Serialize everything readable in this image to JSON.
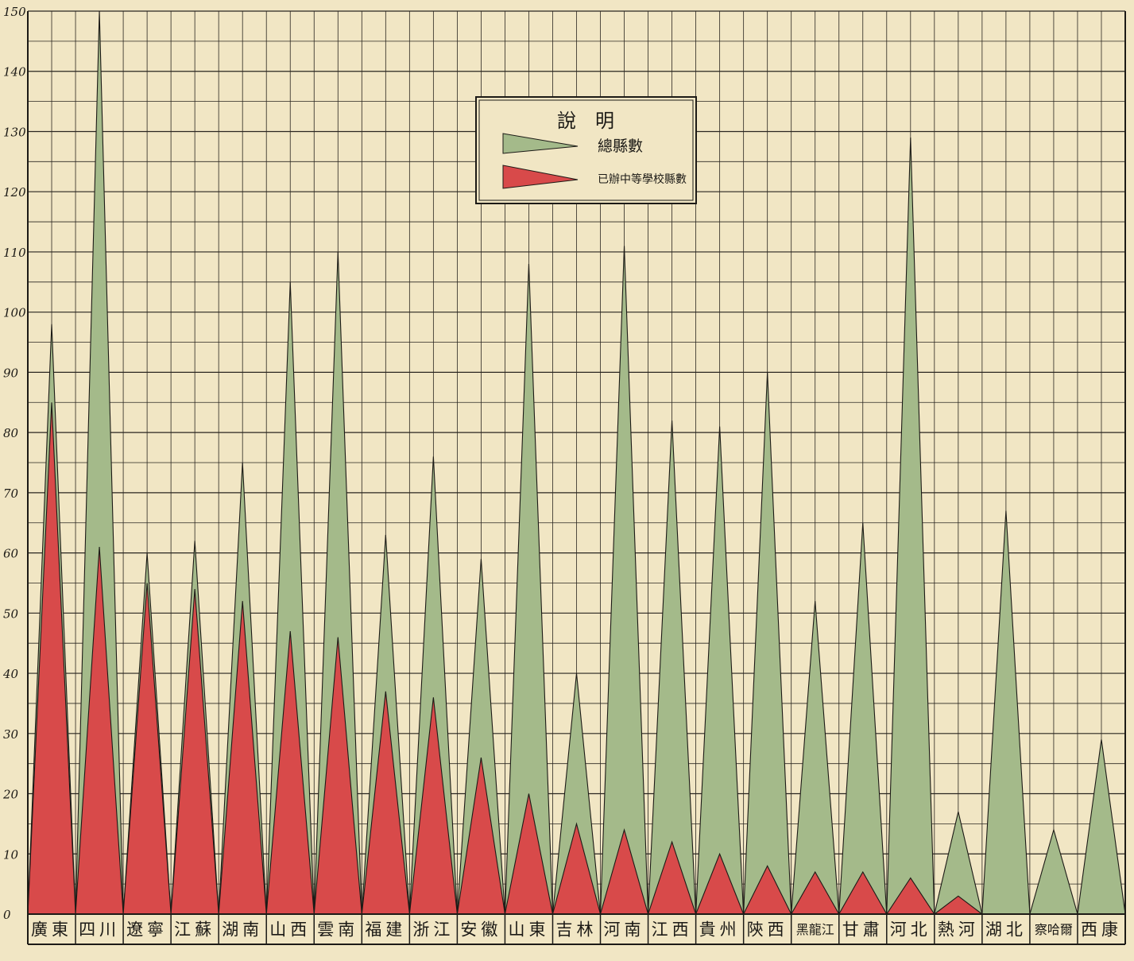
{
  "colors": {
    "paper": "#f1e6c4",
    "grid": "#2a2620",
    "total_fill": "#a4ba8a",
    "schools_fill": "#d84a4a",
    "ink": "#1c1a16"
  },
  "chart_data": {
    "type": "area",
    "categories": [
      "廣東",
      "四川",
      "遼寧",
      "江蘇",
      "湖南",
      "山西",
      "雲南",
      "福建",
      "浙江",
      "安徽",
      "山東",
      "吉林",
      "河南",
      "江西",
      "貴州",
      "陝西",
      "黑龍江",
      "甘肅",
      "河北",
      "熱河",
      "湖北",
      "察哈爾",
      "西康"
    ],
    "ylim": [
      0,
      150
    ],
    "yticks": [
      "0",
      "10",
      "20",
      "30",
      "40",
      "50",
      "60",
      "70",
      "80",
      "90",
      "100",
      "110",
      "120",
      "130",
      "140",
      "150"
    ],
    "series": [
      {
        "name": "總縣數",
        "values": [
          98,
          150,
          60,
          62,
          75,
          105,
          110,
          63,
          76,
          59,
          108,
          40,
          111,
          82,
          81,
          90,
          52,
          65,
          129,
          17,
          67,
          14,
          29
        ]
      },
      {
        "name": "已辦中等學校縣數",
        "values": [
          85,
          61,
          55,
          54,
          52,
          47,
          46,
          37,
          36,
          26,
          20,
          15,
          14,
          12,
          10,
          8,
          7,
          7,
          6,
          3,
          0,
          0,
          0
        ]
      }
    ],
    "legend": {
      "title": "說　明",
      "placement": "top-center"
    }
  }
}
